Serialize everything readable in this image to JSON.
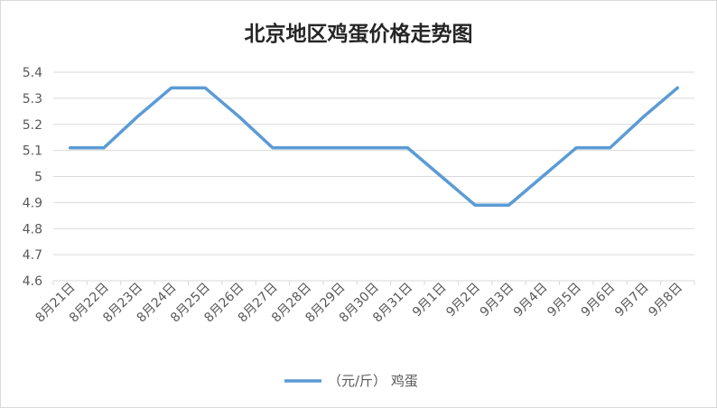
{
  "chart_data": {
    "type": "line",
    "title": "北京地区鸡蛋价格走势图",
    "categories": [
      "8月21日",
      "8月22日",
      "8月23日",
      "8月24日",
      "8月25日",
      "8月26日",
      "8月27日",
      "8月28日",
      "8月29日",
      "8月30日",
      "8月31日",
      "9月1日",
      "9月2日",
      "9月3日",
      "9月4日",
      "9月5日",
      "9月6日",
      "9月7日",
      "9月8日"
    ],
    "series": [
      {
        "name": "（元/斤） 鸡蛋",
        "color": "#5b9bd5",
        "values": [
          5.11,
          5.11,
          5.23,
          5.34,
          5.34,
          5.23,
          5.11,
          5.11,
          5.11,
          5.11,
          5.11,
          5.0,
          4.89,
          4.89,
          5.0,
          5.11,
          5.11,
          5.23,
          5.34
        ]
      }
    ],
    "yticks": [
      "4.6",
      "4.7",
      "4.8",
      "4.9",
      "5",
      "5.1",
      "5.2",
      "5.3",
      "5.4"
    ],
    "ylim": [
      4.6,
      5.4
    ],
    "grid": true,
    "legend_position": "bottom",
    "gridline_color": "#d9d9d9",
    "axis_color": "#d9d9d9",
    "text_color": "#595959",
    "title_color": "#262626"
  }
}
